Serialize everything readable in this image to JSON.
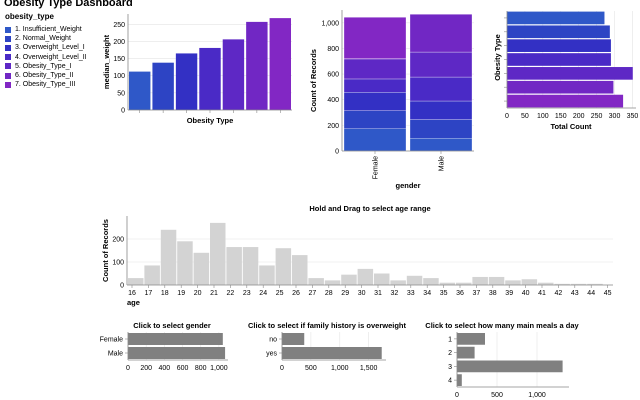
{
  "dashboard_title": "Obesity Type Dashboard",
  "legend": {
    "title": "obesity_type",
    "items": [
      {
        "label": "1. Insufficient_Weight",
        "color": "#2f58c8"
      },
      {
        "label": "2. Normal_Weight",
        "color": "#2d44c4"
      },
      {
        "label": "3. Overweight_Level_I",
        "color": "#3330c4"
      },
      {
        "label": "4. Overweight_Level_II",
        "color": "#4a2ac6"
      },
      {
        "label": "5. Obesity_Type_I",
        "color": "#5e28c5"
      },
      {
        "label": "6. Obesity_Type_II",
        "color": "#7127c4"
      },
      {
        "label": "7. Obesity_Type_III",
        "color": "#8227c4"
      }
    ]
  },
  "chart_data": [
    {
      "id": "median-weight",
      "type": "bar",
      "title": "",
      "xlabel": "Obesity Type",
      "ylabel": "median_weight",
      "categories": [
        "1. Insufficient_Weight",
        "2. Normal_Weight",
        "3. Overweight_Level_I",
        "4. Overweight_Level_II",
        "5. Obesity_Type_I",
        "6. Obesity_Type_II",
        "7. Obesity_Type_III"
      ],
      "values": [
        112,
        138,
        165,
        181,
        206,
        257,
        268
      ],
      "ylim": [
        0,
        280
      ],
      "yticks": [
        0,
        50,
        100,
        150,
        200,
        250
      ]
    },
    {
      "id": "gender-stacked",
      "type": "bar",
      "stacked": true,
      "title": "",
      "xlabel": "gender",
      "ylabel": "Count of Records",
      "categories": [
        "Female",
        "Male"
      ],
      "series": [
        {
          "name": "1. Insufficient_Weight",
          "values": [
            173,
            99
          ]
        },
        {
          "name": "2. Normal_Weight",
          "values": [
            141,
            146
          ]
        },
        {
          "name": "3. Overweight_Level_I",
          "values": [
            145,
            145
          ]
        },
        {
          "name": "4. Overweight_Level_II",
          "values": [
            103,
            187
          ]
        },
        {
          "name": "5. Obesity_Type_I",
          "values": [
            156,
            195
          ]
        },
        {
          "name": "6. Obesity_Type_II",
          "values": [
            2,
            295
          ]
        },
        {
          "name": "7. Obesity_Type_III",
          "values": [
            323,
            1
          ]
        }
      ],
      "ylim": [
        0,
        1100
      ],
      "yticks": [
        0,
        200,
        400,
        600,
        800,
        1000
      ],
      "ytick_labels": [
        "0",
        "200",
        "400",
        "600",
        "800",
        "1,000"
      ]
    },
    {
      "id": "obesity-total",
      "type": "bar",
      "orientation": "horizontal",
      "title": "",
      "xlabel": "Total Count",
      "ylabel": "Obesity Type",
      "categories": [
        "1. Insufficient_Weight",
        "2. Normal_Weight",
        "3. Overweight_Level_I",
        "4. Overweight_Level_II",
        "5. Obesity_Type_I",
        "6. Obesity_Type_II",
        "7. Obesity_Type_III"
      ],
      "values": [
        272,
        287,
        290,
        290,
        351,
        297,
        324
      ],
      "xlim": [
        0,
        360
      ],
      "xticks": [
        0,
        50,
        100,
        150,
        200,
        250,
        300,
        350
      ]
    },
    {
      "id": "age-hist",
      "type": "bar",
      "title": "Hold and Drag to select age range",
      "xlabel": "age",
      "ylabel": "Count of Records",
      "categories": [
        "16",
        "17",
        "18",
        "19",
        "20",
        "21",
        "22",
        "23",
        "24",
        "25",
        "26",
        "27",
        "28",
        "29",
        "30",
        "31",
        "32",
        "33",
        "34",
        "35",
        "36",
        "37",
        "38",
        "39",
        "40",
        "41",
        "42",
        "43",
        "44",
        "45"
      ],
      "values": [
        30,
        85,
        240,
        190,
        140,
        270,
        165,
        165,
        85,
        160,
        130,
        30,
        20,
        45,
        70,
        50,
        20,
        40,
        30,
        10,
        10,
        35,
        35,
        20,
        25,
        10,
        5,
        5,
        5,
        5
      ],
      "ylim": [
        0,
        300
      ],
      "yticks": [
        0,
        100,
        200
      ]
    },
    {
      "id": "gender-select",
      "type": "bar",
      "orientation": "horizontal",
      "title": "Click to select gender",
      "categories": [
        "Female",
        "Male"
      ],
      "values": [
        1043,
        1068
      ],
      "xlim": [
        0,
        1100
      ],
      "xticks": [
        0,
        200,
        400,
        600,
        800,
        1000
      ],
      "xtick_labels": [
        "0",
        "200",
        "400",
        "600",
        "800",
        "1,000"
      ]
    },
    {
      "id": "family-history",
      "type": "bar",
      "orientation": "horizontal",
      "title": "Click to select if family history is overweight",
      "categories": [
        "no",
        "yes"
      ],
      "values": [
        385,
        1726
      ],
      "xlim": [
        0,
        1800
      ],
      "xticks": [
        0,
        500,
        1000,
        1500
      ],
      "xtick_labels": [
        "0",
        "500",
        "1,000",
        "1,500"
      ]
    },
    {
      "id": "main-meals",
      "type": "bar",
      "orientation": "horizontal",
      "title": "Click to select how many main meals a day",
      "categories": [
        "1",
        "2",
        "3",
        "4"
      ],
      "values": [
        350,
        220,
        1320,
        60
      ],
      "xlim": [
        0,
        1400
      ],
      "xticks": [
        0,
        500,
        1000
      ],
      "xtick_labels": [
        "0",
        "500",
        "1,000"
      ]
    }
  ]
}
